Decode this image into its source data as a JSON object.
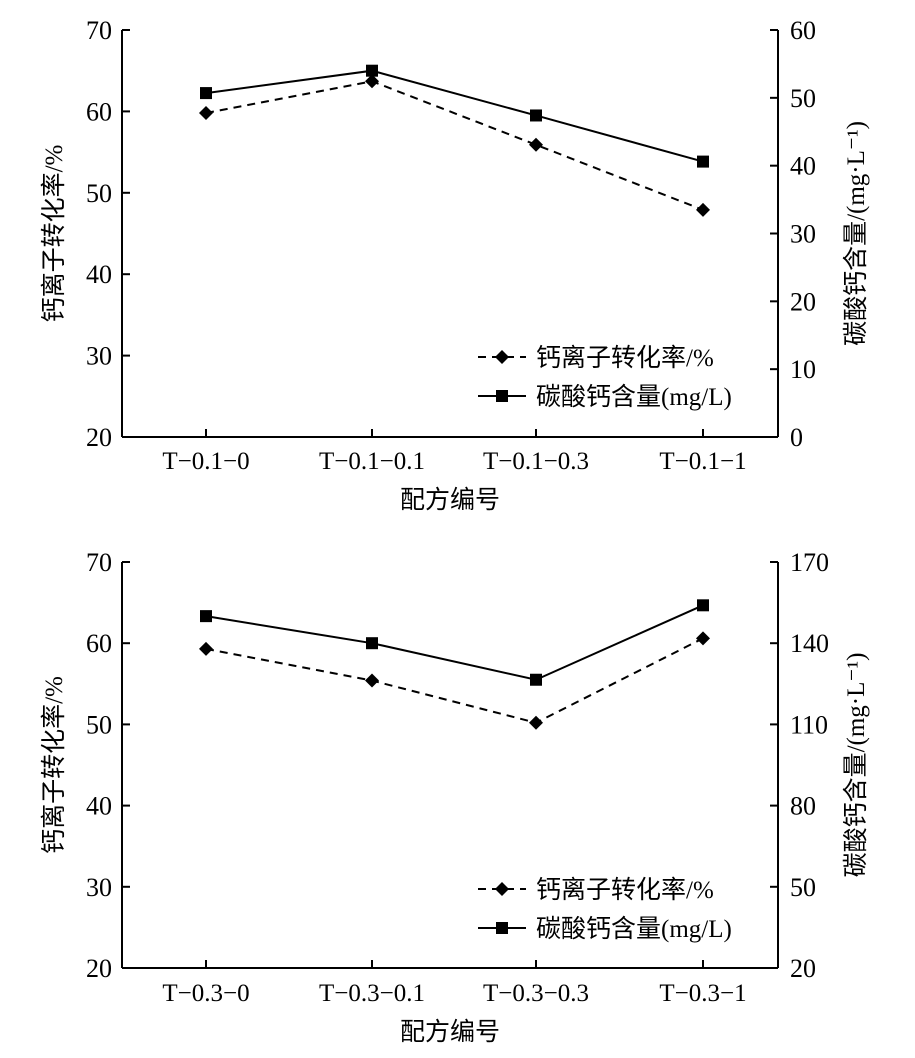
{
  "chart_data": [
    {
      "type": "line",
      "categories": [
        "T−0.1−0",
        "T−0.1−0.1",
        "T−0.1−0.3",
        "T−0.1−1"
      ],
      "xlabel": "配方编号",
      "ylabel_left": "钙离子转化率/%",
      "ylabel_right": "碳酸钙含量/(mg·L⁻¹)",
      "ylim_left": [
        20,
        70
      ],
      "yticks_left": [
        20,
        30,
        40,
        50,
        60,
        70
      ],
      "ylim_right": [
        0,
        60
      ],
      "yticks_right": [
        0,
        10,
        20,
        30,
        40,
        50,
        60
      ],
      "series": [
        {
          "name": "钙离子转化率/%",
          "axis": "left",
          "style": "dashed",
          "marker": "diamond",
          "values": [
            59.8,
            63.7,
            55.9,
            47.9
          ]
        },
        {
          "name": "碳酸钙含量(mg/L)",
          "axis": "right",
          "style": "solid",
          "marker": "square",
          "values": [
            50.7,
            54.0,
            47.4,
            40.6
          ]
        }
      ]
    },
    {
      "type": "line",
      "categories": [
        "T−0.3−0",
        "T−0.3−0.1",
        "T−0.3−0.3",
        "T−0.3−1"
      ],
      "xlabel": "配方编号",
      "ylabel_left": "钙离子转化率/%",
      "ylabel_right": "碳酸钙含量/(mg·L⁻¹)",
      "ylim_left": [
        20,
        70
      ],
      "yticks_left": [
        20,
        30,
        40,
        50,
        60,
        70
      ],
      "ylim_right": [
        20,
        170
      ],
      "yticks_right": [
        20,
        50,
        80,
        110,
        140,
        170
      ],
      "series": [
        {
          "name": "钙离子转化率/%",
          "axis": "left",
          "style": "dashed",
          "marker": "diamond",
          "values": [
            59.3,
            55.4,
            50.2,
            60.6
          ]
        },
        {
          "name": "碳酸钙含量(mg/L)",
          "axis": "right",
          "style": "solid",
          "marker": "square",
          "values": [
            150.0,
            140.0,
            126.5,
            154.0
          ]
        }
      ]
    }
  ]
}
